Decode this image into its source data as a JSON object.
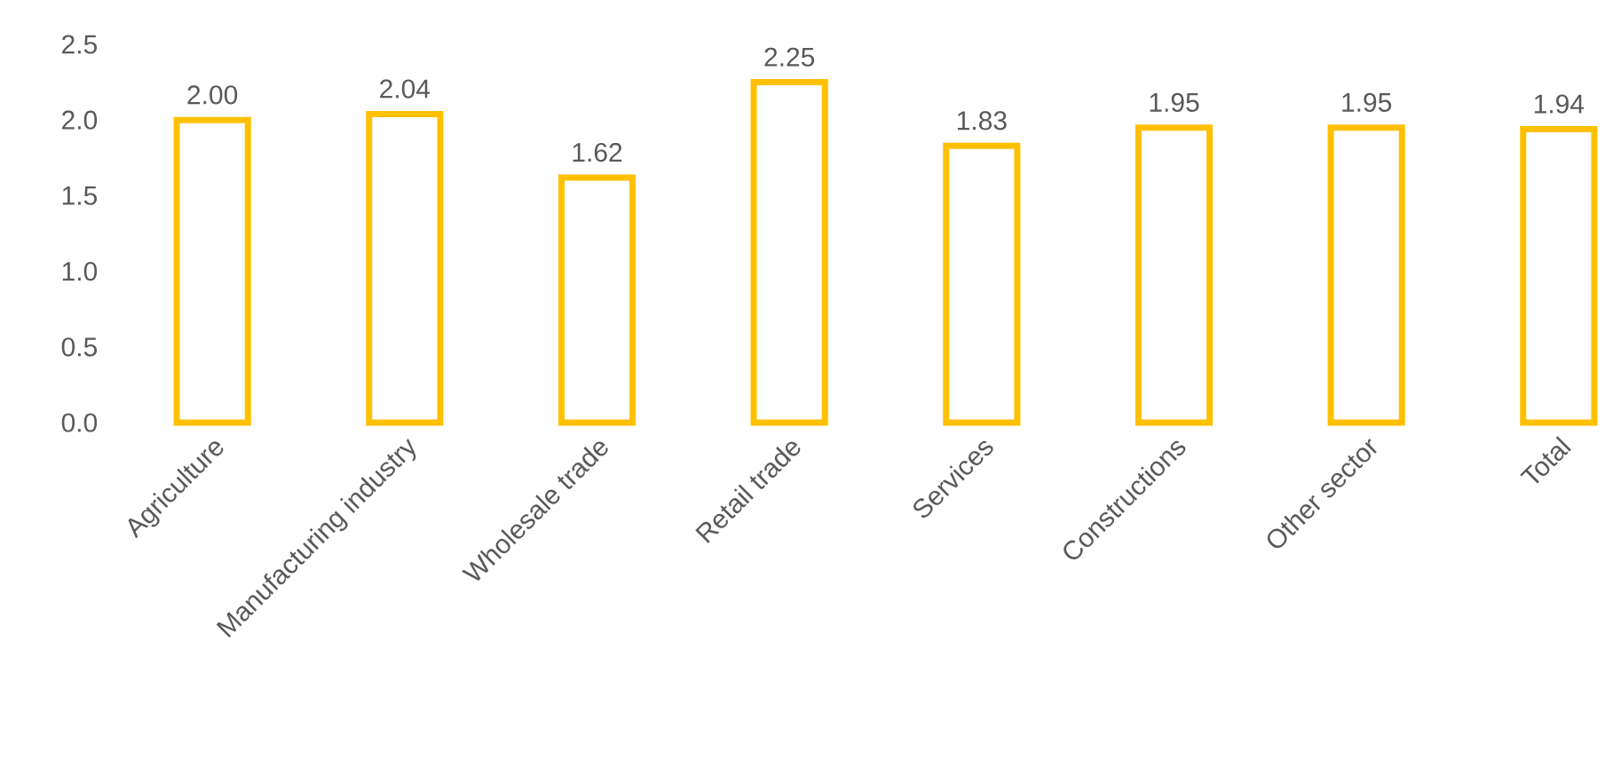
{
  "chart_data": {
    "type": "bar",
    "categories": [
      "Agriculture",
      "Manufacturing industry",
      "Wholesale trade",
      "Retail trade",
      "Services",
      "Constructions",
      "Other sector",
      "Total"
    ],
    "values": [
      2.0,
      2.04,
      1.62,
      2.25,
      1.83,
      1.95,
      1.95,
      1.94
    ],
    "value_labels": [
      "2.00",
      "2.04",
      "1.62",
      "2.25",
      "1.83",
      "1.95",
      "1.95",
      "1.94"
    ],
    "color": "#ffc000",
    "ylim": [
      0,
      2.5
    ],
    "yticks": [
      {
        "value": 0,
        "label": "0.0"
      },
      {
        "value": 0.5,
        "label": "0.5"
      },
      {
        "value": 1,
        "label": "1.0"
      },
      {
        "value": 1.5,
        "label": "1.5"
      },
      {
        "value": 2,
        "label": "2.0"
      },
      {
        "value": 2.5,
        "label": "2.5"
      }
    ],
    "grid": false
  }
}
